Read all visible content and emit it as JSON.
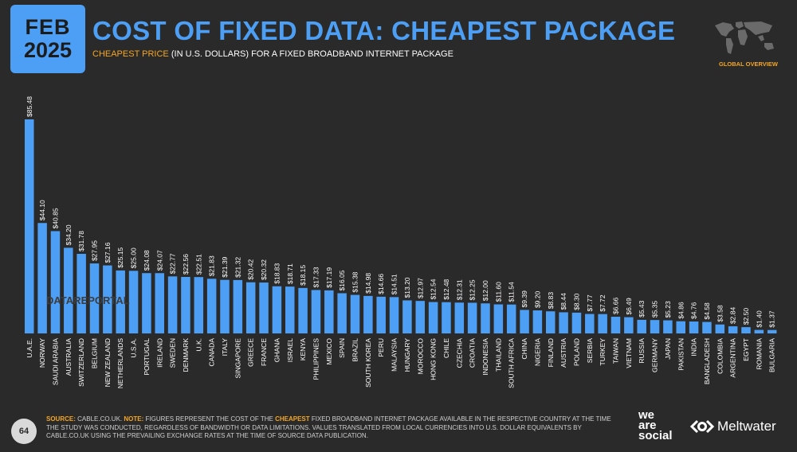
{
  "badge": {
    "month": "FEB",
    "year": "2025"
  },
  "header": {
    "title": "COST OF FIXED DATA: CHEAPEST PACKAGE",
    "subtitle_highlight": "CHEAPEST PRICE",
    "subtitle_rest": "(IN U.S. DOLLARS) FOR A FIXED BROADBAND INTERNET PACKAGE"
  },
  "global_overview": "GLOBAL OVERVIEW",
  "watermark": "DATAREPORTAL",
  "footer": {
    "page_number": "64",
    "source_label": "SOURCE:",
    "source_text": "CABLE.CO.UK.",
    "note_label": "NOTE:",
    "note_text_1": "FIGURES REPRESENT THE COST OF THE",
    "note_highlight": "CHEAPEST",
    "note_text_2": "FIXED BROADBAND INTERNET PACKAGE AVAILABLE IN THE RESPECTIVE COUNTRY AT THE TIME THE STUDY WAS CONDUCTED, REGARDLESS OF BANDWIDTH OR DATA LIMITATIONS. VALUES TRANSLATED FROM LOCAL CURRENCIES INTO U.S. DOLLAR EQUIVALENTS BY CABLE.CO.UK USING THE PREVAILING EXCHANGE RATES AT THE TIME OF SOURCE DATA PUBLICATION.",
    "logo_line1": "we",
    "logo_line2": "are",
    "logo_line3": "social",
    "partner_logo": "Meltwater"
  },
  "colors": {
    "accent": "#4c9ff5",
    "highlight": "#f5a623",
    "background": "#2a2a2a"
  },
  "chart_data": {
    "type": "bar",
    "categories": [
      "U.A.E.",
      "NORWAY",
      "SAUDI ARABIA",
      "AUSTRALIA",
      "SWITZERLAND",
      "BELGIUM",
      "NEW ZEALAND",
      "NETHERLANDS",
      "U.S.A.",
      "PORTUGAL",
      "IRELAND",
      "SWEDEN",
      "DENMARK",
      "U.K.",
      "CANADA",
      "ITALY",
      "SINGAPORE",
      "GREECE",
      "FRANCE",
      "GHANA",
      "ISRAEL",
      "KENYA",
      "PHILIPPINES",
      "MEXICO",
      "SPAIN",
      "BRAZIL",
      "SOUTH KOREA",
      "PERU",
      "MALAYSIA",
      "HUNGARY",
      "MOROCCO",
      "HONG KONG",
      "CHILE",
      "CZECHIA",
      "CROATIA",
      "INDONESIA",
      "THAILAND",
      "SOUTH AFRICA",
      "CHINA",
      "NIGERIA",
      "FINLAND",
      "AUSTRIA",
      "POLAND",
      "SERBIA",
      "TURKEY",
      "TAIWAN",
      "VIETNAM",
      "RUSSIA",
      "GERMANY",
      "JAPAN",
      "PAKISTAN",
      "INDIA",
      "BANGLADESH",
      "COLOMBIA",
      "ARGENTINA",
      "EGYPT",
      "ROMANIA",
      "BULGARIA"
    ],
    "values": [
      85.48,
      44.1,
      40.85,
      34.2,
      31.78,
      27.95,
      27.16,
      25.15,
      25.0,
      24.08,
      24.07,
      22.77,
      22.56,
      22.51,
      21.83,
      21.39,
      21.32,
      20.42,
      20.32,
      18.83,
      18.71,
      18.15,
      17.33,
      17.19,
      16.05,
      15.38,
      14.98,
      14.66,
      14.51,
      13.2,
      12.97,
      12.54,
      12.48,
      12.31,
      12.25,
      12.0,
      11.6,
      11.54,
      9.39,
      9.2,
      8.83,
      8.44,
      8.3,
      7.77,
      7.72,
      6.66,
      6.49,
      5.43,
      5.35,
      5.23,
      4.86,
      4.76,
      4.58,
      3.58,
      2.84,
      2.5,
      1.4,
      1.37
    ],
    "labels": [
      "$85.48",
      "$44.10",
      "$40.85",
      "$34.20",
      "$31.78",
      "$27.95",
      "$27.16",
      "$25.15",
      "$25.00",
      "$24.08",
      "$24.07",
      "$22.77",
      "$22.56",
      "$22.51",
      "$21.83",
      "$21.39",
      "$21.32",
      "$20.42",
      "$20.32",
      "$18.83",
      "$18.71",
      "$18.15",
      "$17.33",
      "$17.19",
      "$16.05",
      "$15.38",
      "$14.98",
      "$14.66",
      "$14.51",
      "$13.20",
      "$12.97",
      "$12.54",
      "$12.48",
      "$12.31",
      "$12.25",
      "$12.00",
      "$11.60",
      "$11.54",
      "$9.39",
      "$9.20",
      "$8.83",
      "$8.44",
      "$8.30",
      "$7.77",
      "$7.72",
      "$6.66",
      "$6.49",
      "$5.43",
      "$5.35",
      "$5.23",
      "$4.86",
      "$4.76",
      "$4.58",
      "$3.58",
      "$2.84",
      "$2.50",
      "$1.40",
      "$1.37"
    ],
    "ylim": [
      0,
      85.48
    ],
    "grid": false,
    "bar_color": "#4c9ff5"
  }
}
